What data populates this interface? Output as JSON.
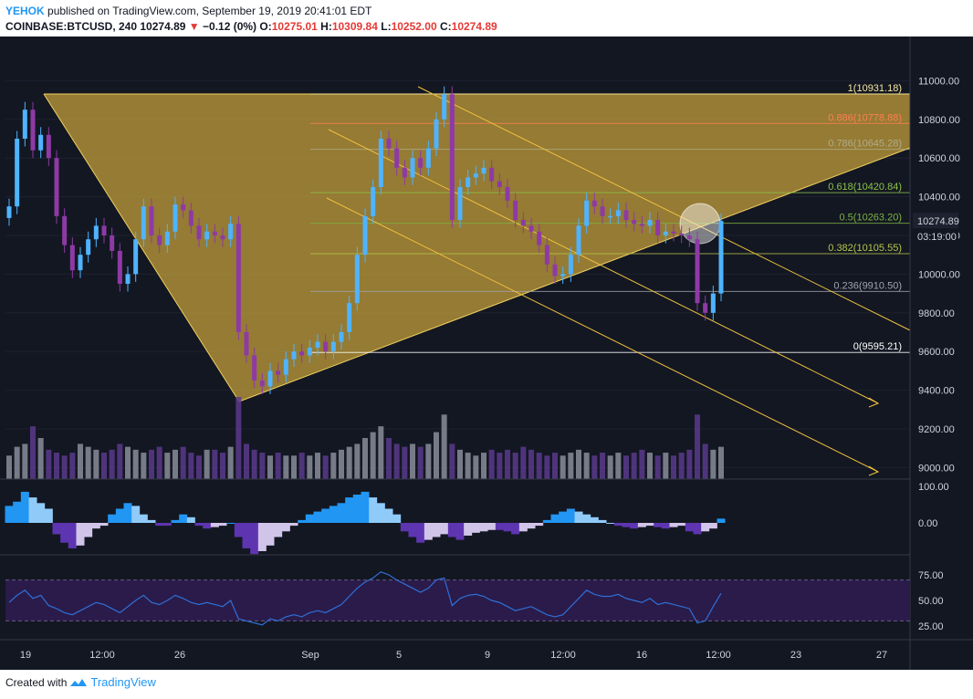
{
  "header": {
    "author": "YEHOK",
    "published": "published on TradingView.com, September 19, 2019 20:41:01 EDT",
    "symbol": "COINBASE:BTCUSD, 240",
    "last": "10274.89",
    "change_arrow": "▼",
    "change": "−0.12 (0%)",
    "o_key": "O:",
    "o_val": "10275.01",
    "h_key": "H:",
    "h_val": "10309.84",
    "l_key": "L:",
    "l_val": "10252.00",
    "c_key": "C:",
    "c_val": "10274.89"
  },
  "footer": {
    "created_with": "Created with",
    "brand": "TradingView",
    "logo_icon": "tradingview-logo-icon"
  },
  "colors": {
    "background": "#131722",
    "up": "#4fb3ff",
    "down": "#8e3aa5",
    "triangle_fill": "#c8a23a",
    "triangle_line": "#f0d060",
    "channel": "#f0c040",
    "fib_1": "#f5e6a0",
    "fib_0886": "#ff7f50",
    "fib_0786": "#b2ab8c",
    "fib_0618": "#8bc34a",
    "fib_05": "#7cb342",
    "fib_0382": "#b5c44a",
    "fib_0236": "#a0a4b0",
    "fib_0": "#ffffff",
    "osc_up": "#2196f3",
    "osc_up_light": "#90caf9",
    "osc_down": "#5e35b1",
    "osc_down_light": "#d1c4e9",
    "rsi_band": "#2a1b4a",
    "rsi_line": "#2f6fd6"
  },
  "chart_data": {
    "type": "candlestick",
    "price_axis": {
      "ylim": [
        8850,
        11100
      ],
      "ticks": [
        "11000.00",
        "10800.00",
        "10600.00",
        "10400.00",
        "10200.00",
        "10000.00",
        "9800.00",
        "9600.00",
        "9400.00",
        "9200.00",
        "9000.00"
      ],
      "tick_values": [
        11000,
        10800,
        10600,
        10400,
        10200,
        10000,
        9800,
        9600,
        9400,
        9200,
        9000
      ]
    },
    "time_axis": {
      "ticks": [
        "19",
        "12:00",
        "26",
        "Sep",
        "5",
        "9",
        "12:00",
        "16",
        "12:00",
        "23",
        "27"
      ]
    },
    "last_price_label": "10274.89",
    "countdown_label": "03:19:00",
    "fib_levels": [
      {
        "label": "1(10931.18)",
        "value": 10931.18,
        "color_key": "fib_1"
      },
      {
        "label": "0.886(10778.88)",
        "value": 10778.88,
        "color_key": "fib_0886"
      },
      {
        "label": "0.786(10645.28)",
        "value": 10645.28,
        "color_key": "fib_0786"
      },
      {
        "label": "0.618(10420.84)",
        "value": 10420.84,
        "color_key": "fib_0618"
      },
      {
        "label": "0.5(10263.20)",
        "value": 10263.2,
        "color_key": "fib_05"
      },
      {
        "label": "0.382(10105.55)",
        "value": 10105.55,
        "color_key": "fib_0382"
      },
      {
        "label": "0.236(9910.50)",
        "value": 9910.5,
        "color_key": "fib_0236"
      },
      {
        "label": "0(9595.21)",
        "value": 9595.21,
        "color_key": "fib_0"
      }
    ],
    "close": [
      10350,
      10700,
      10850,
      10640,
      10720,
      10600,
      10300,
      10150,
      10020,
      10100,
      10180,
      10250,
      10200,
      10120,
      9950,
      10000,
      10180,
      10350,
      10200,
      10150,
      10220,
      10360,
      10330,
      10250,
      10180,
      10220,
      10200,
      10180,
      10260,
      9700,
      9580,
      9450,
      9420,
      9500,
      9480,
      9560,
      9600,
      9580,
      9620,
      9650,
      9600,
      9650,
      9700,
      9850,
      10100,
      10300,
      10450,
      10700,
      10650,
      10550,
      10500,
      10600,
      10550,
      10650,
      10800,
      10930,
      10280,
      10450,
      10500,
      10520,
      10550,
      10480,
      10450,
      10380,
      10280,
      10250,
      10220,
      10150,
      10050,
      9990,
      10000,
      10100,
      10250,
      10380,
      10350,
      10300,
      10300,
      10330,
      10280,
      10260,
      10250,
      10280,
      10200,
      10220,
      10210,
      10200,
      10180,
      9850,
      9800,
      9900,
      10274.89
    ],
    "volume": [
      40,
      55,
      60,
      90,
      70,
      50,
      45,
      40,
      45,
      60,
      55,
      50,
      45,
      50,
      60,
      55,
      50,
      45,
      50,
      55,
      45,
      50,
      55,
      45,
      40,
      50,
      50,
      45,
      55,
      140,
      60,
      50,
      45,
      40,
      45,
      40,
      40,
      45,
      40,
      45,
      40,
      45,
      50,
      55,
      60,
      70,
      80,
      90,
      70,
      60,
      55,
      60,
      55,
      60,
      80,
      110,
      60,
      50,
      45,
      40,
      45,
      50,
      45,
      50,
      45,
      55,
      50,
      45,
      40,
      45,
      40,
      45,
      50,
      45,
      40,
      45,
      40,
      45,
      40,
      45,
      50,
      45,
      40,
      45,
      40,
      45,
      50,
      110,
      60,
      50,
      55
    ],
    "momentum": [
      12,
      15,
      22,
      18,
      14,
      10,
      -8,
      -14,
      -18,
      -16,
      -10,
      -4,
      -2,
      6,
      10,
      14,
      12,
      6,
      2,
      -2,
      -2,
      2,
      6,
      4,
      -2,
      -4,
      -3,
      -2,
      0,
      -10,
      -18,
      -22,
      -20,
      -16,
      -10,
      -6,
      -2,
      2,
      6,
      8,
      10,
      12,
      14,
      18,
      20,
      22,
      18,
      14,
      10,
      6,
      -6,
      -10,
      -14,
      -12,
      -10,
      -8,
      -10,
      -12,
      -9,
      -7,
      -6,
      -5,
      -5,
      -6,
      -8,
      -6,
      -4,
      -2,
      2,
      6,
      8,
      10,
      8,
      6,
      4,
      2,
      0,
      -2,
      -3,
      -4,
      -3,
      -2,
      -3,
      -4,
      -3,
      -2,
      -6,
      -8,
      -6,
      -4,
      3
    ],
    "rsi": [
      48,
      55,
      60,
      52,
      55,
      45,
      42,
      38,
      36,
      40,
      44,
      48,
      46,
      42,
      38,
      44,
      50,
      55,
      48,
      46,
      50,
      55,
      52,
      48,
      46,
      48,
      46,
      44,
      50,
      32,
      30,
      28,
      26,
      32,
      30,
      34,
      36,
      34,
      38,
      40,
      38,
      42,
      46,
      54,
      62,
      68,
      72,
      78,
      75,
      70,
      66,
      62,
      58,
      62,
      70,
      72,
      45,
      52,
      55,
      56,
      54,
      50,
      48,
      44,
      40,
      42,
      44,
      40,
      36,
      34,
      36,
      44,
      52,
      60,
      56,
      54,
      54,
      56,
      52,
      50,
      48,
      52,
      46,
      48,
      46,
      44,
      42,
      28,
      30,
      44,
      57
    ],
    "rsi_ticks": [
      "75.00",
      "50.00",
      "25.00"
    ],
    "osc_ticks": [
      "100.00",
      "0.00"
    ]
  }
}
